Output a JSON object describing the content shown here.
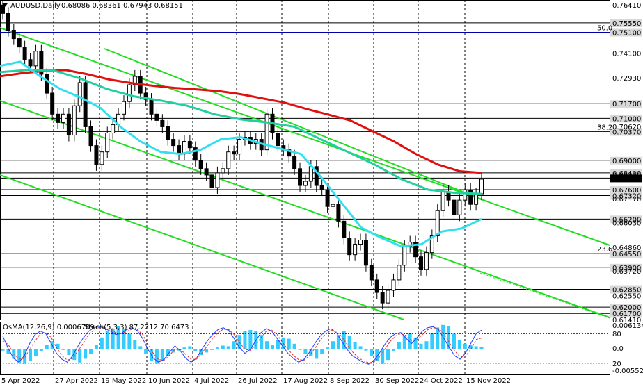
{
  "header": {
    "symbol": "AUDUSD,Daily",
    "ohlc": "0.68086 0.68361 0.67943 0.68151"
  },
  "osc_header": {
    "osma": "OsMA(12,26,9) 0.0006709",
    "stoch": "Stoch(5,3,3) 87.2212 70.6473"
  },
  "colors": {
    "grid": "#000000",
    "price_line": "#000000",
    "ema_long": "#e01010",
    "ema_mid": "#20d0a0",
    "ema_short": "#30e0f0",
    "channel": "#22dd22",
    "fibo_line": "#0000aa",
    "histogram": "#33ccff",
    "stoch_main": "#1e3cff",
    "stoch_signal": "#e03030"
  },
  "chart_data": {
    "type": "candlestick",
    "title": "AUDUSD,Daily",
    "x_tick_labels": [
      "5 Apr 2022",
      "27 Apr 2022",
      "19 May 2022",
      "10 Jun 2022",
      "4 Jul 2022",
      "26 Jul 2022",
      "17 Aug 2022",
      "8 Sep 2022",
      "30 Sep 2022",
      "24 Oct 2022",
      "15 Nov 2022"
    ],
    "ylim": [
      0.6141,
      0.7664
    ],
    "y_tick_labels": [
      "0.76410",
      "0.74100",
      "0.72930",
      "0.70620",
      "0.68310",
      "0.67170",
      "0.66030",
      "0.64860",
      "0.63720",
      "0.62550",
      "0.61410"
    ],
    "y_tick_values": [
      0.7641,
      0.741,
      0.7293,
      0.7062,
      0.6831,
      0.6717,
      0.6603,
      0.6486,
      0.6372,
      0.6255,
      0.6141
    ],
    "levels": [
      {
        "label": "0.75550",
        "value": 0.7555
      },
      {
        "label": "0.75100",
        "value": 0.751
      },
      {
        "label": "0.71700",
        "value": 0.717
      },
      {
        "label": "0.71000",
        "value": 0.71
      },
      {
        "label": "0.70370",
        "value": 0.7037
      },
      {
        "label": "0.69000",
        "value": 0.69
      },
      {
        "label": "0.68400",
        "value": 0.684
      },
      {
        "label": "0.68151",
        "value": 0.68151
      },
      {
        "label": "0.67600",
        "value": 0.676
      },
      {
        "label": "0.67320",
        "value": 0.6732
      },
      {
        "label": "0.66200",
        "value": 0.662
      },
      {
        "label": "0.64550",
        "value": 0.6455
      },
      {
        "label": "0.63900",
        "value": 0.639
      },
      {
        "label": "0.62850",
        "value": 0.6285
      },
      {
        "label": "0.62000",
        "value": 0.62
      },
      {
        "label": "0.61700",
        "value": 0.617
      }
    ],
    "fibo": [
      {
        "label": "50.0",
        "value": 0.751
      },
      {
        "label": "38.2",
        "value": 0.7037
      },
      {
        "label": "23.6",
        "value": 0.6455
      }
    ],
    "price_path": [
      0.76,
      0.752,
      0.748,
      0.744,
      0.738,
      0.735,
      0.742,
      0.731,
      0.722,
      0.712,
      0.708,
      0.712,
      0.702,
      0.716,
      0.727,
      0.706,
      0.697,
      0.688,
      0.694,
      0.703,
      0.707,
      0.712,
      0.718,
      0.726,
      0.73,
      0.722,
      0.719,
      0.712,
      0.709,
      0.706,
      0.7,
      0.697,
      0.693,
      0.699,
      0.696,
      0.69,
      0.686,
      0.683,
      0.677,
      0.684,
      0.686,
      0.694,
      0.693,
      0.7,
      0.701,
      0.698,
      0.7,
      0.695,
      0.712,
      0.703,
      0.697,
      0.695,
      0.692,
      0.686,
      0.678,
      0.68,
      0.687,
      0.678,
      0.676,
      0.668,
      0.669,
      0.661,
      0.653,
      0.645,
      0.65,
      0.652,
      0.64,
      0.633,
      0.627,
      0.622,
      0.628,
      0.633,
      0.64,
      0.649,
      0.651,
      0.644,
      0.638,
      0.646,
      0.654,
      0.666,
      0.675,
      0.671,
      0.664,
      0.671,
      0.676,
      0.669,
      0.674,
      0.681
    ],
    "series": [
      {
        "values": [
          0.73,
          0.7315,
          0.7325,
          0.733,
          0.731,
          0.7285,
          0.7268,
          0.7255,
          0.7245,
          0.7238,
          0.723,
          0.7215,
          0.7195,
          0.7175,
          0.7145,
          0.7118,
          0.709,
          0.704,
          0.699,
          0.693,
          0.688,
          0.6848,
          0.684
        ]
      },
      {
        "values": [
          0.732,
          0.733,
          0.7328,
          0.729,
          0.724,
          0.7205,
          0.7185,
          0.716,
          0.712,
          0.7095,
          0.708,
          0.706,
          0.7,
          0.694,
          0.688,
          0.681,
          0.676,
          0.6745,
          0.674
        ]
      },
      {
        "values": [
          0.735,
          0.737,
          0.73,
          0.724,
          0.72,
          0.715,
          0.706,
          0.699,
          0.694,
          0.693,
          0.695,
          0.7,
          0.701,
          0.698,
          0.6955,
          0.693,
          0.682,
          0.67,
          0.658,
          0.653,
          0.649,
          0.65,
          0.656,
          0.6575,
          0.662
        ]
      }
    ],
    "osc_ylim": [
      -0.005521,
      0.006134
    ],
    "osc_labels": [
      "0.006134",
      "0.0",
      "-0.005521"
    ],
    "stoch_levels": [
      "80",
      "20"
    ],
    "histogram": [
      -0.3,
      -0.8,
      -1.6,
      -2.2,
      -2.4,
      -2.0,
      -1.2,
      -0.4,
      0.6,
      1.2,
      0.8,
      -0.2,
      -1.0,
      -1.8,
      -2.2,
      -1.6,
      -0.8,
      0.6,
      1.8,
      2.8,
      3.2,
      3.6,
      3.2,
      2.4,
      1.4,
      0.4,
      -0.8,
      -2.0,
      -2.4,
      -2.0,
      -1.2,
      -0.6,
      -0.3,
      0.2,
      0.4,
      -0.4,
      -1.0,
      -0.6,
      -0.2,
      0.2,
      0.5,
      0.4,
      1.2,
      2.2,
      2.8,
      3.0,
      2.8,
      2.2,
      1.2,
      0.6,
      1.4,
      1.8,
      1.6,
      0.8,
      -0.2,
      -0.8,
      -1.2,
      -1.6,
      -0.8,
      0.2,
      1.2,
      2.2,
      2.8,
      2.0,
      1.0,
      0.4,
      -0.3,
      -1.2,
      -2.0,
      -2.4,
      -1.8,
      -0.4,
      1.0,
      2.0,
      2.4,
      1.8,
      0.8,
      1.2,
      2.4,
      3.4,
      3.8,
      3.6,
      2.4,
      1.4,
      0.8,
      0.6,
      0.4,
      0.3
    ],
    "stoch_main": [
      75,
      50,
      30,
      22,
      35,
      60,
      78,
      85,
      80,
      60,
      40,
      28,
      22,
      35,
      55,
      72,
      85,
      92,
      95,
      90,
      85,
      78,
      80,
      88,
      92,
      86,
      70,
      48,
      30,
      22,
      28,
      42,
      55,
      45,
      30,
      22,
      30,
      48,
      65,
      78,
      88,
      92,
      86,
      70,
      52,
      40,
      48,
      65,
      82,
      90,
      85,
      70,
      55,
      40,
      30,
      22,
      28,
      42,
      60,
      75,
      85,
      90,
      82,
      65,
      48,
      35,
      28,
      22,
      18,
      25,
      40,
      58,
      72,
      80,
      82,
      70,
      60,
      72,
      85,
      92,
      94,
      88,
      70,
      52,
      35,
      28,
      40,
      60,
      80,
      87
    ],
    "stoch_signal": [
      65,
      58,
      40,
      28,
      30,
      48,
      65,
      80,
      82,
      72,
      52,
      35,
      26,
      30,
      45,
      62,
      78,
      88,
      93,
      92,
      88,
      82,
      80,
      84,
      89,
      88,
      78,
      58,
      40,
      27,
      26,
      36,
      48,
      48,
      38,
      28,
      28,
      40,
      55,
      70,
      82,
      89,
      88,
      78,
      62,
      48,
      46,
      56,
      72,
      85,
      87,
      78,
      62,
      48,
      36,
      27,
      26,
      35,
      50,
      66,
      79,
      87,
      85,
      74,
      58,
      43,
      32,
      25,
      21,
      22,
      32,
      48,
      64,
      75,
      80,
      76,
      66,
      68,
      78,
      88,
      92,
      90,
      80,
      62,
      45,
      33,
      34,
      48,
      68,
      71
    ]
  }
}
